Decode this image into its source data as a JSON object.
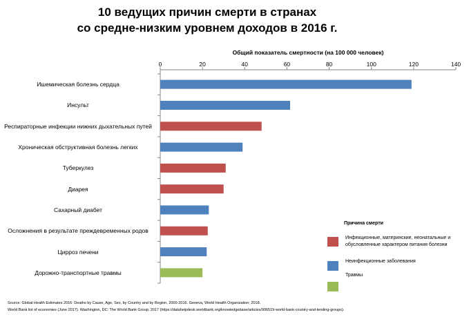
{
  "title_line1": "10 ведущих причин смерти в странах",
  "title_line2": "со средне-низким уровнем доходов в 2016 г.",
  "chart_data": {
    "type": "bar",
    "orientation": "horizontal",
    "xlabel": "Общий показатель смертности (на 100 000 человек)",
    "xlim": [
      0,
      140
    ],
    "ticks": [
      "0",
      "20",
      "40",
      "60",
      "80",
      "100",
      "120",
      "140"
    ],
    "tick_values": [
      0,
      20,
      40,
      60,
      80,
      100,
      120,
      140
    ],
    "categories": [
      "Ишемическая болезнь сердца",
      "Инсульт",
      "Респираторные инфекции нижних дыхательных путей",
      "Хроническая обструктивная болезнь легких",
      "Туберкулез",
      "Диарея",
      "Сахарный диабет",
      "Осложнения в результате преждевременных родов",
      "Цирроз печени",
      "Дорожно-транспортные травмы"
    ],
    "values": [
      119,
      61.5,
      48,
      39,
      31,
      30,
      23,
      22.5,
      22,
      20
    ],
    "groups": [
      "noninfectious",
      "noninfectious",
      "infectious",
      "noninfectious",
      "infectious",
      "infectious",
      "noninfectious",
      "infectious",
      "noninfectious",
      "injury"
    ],
    "grid": false,
    "legend_position": "bottom-right"
  },
  "colors": {
    "infectious": "#c0504d",
    "noninfectious": "#4f81bd",
    "injury": "#9bbb59",
    "axis": "#868686"
  },
  "legend": {
    "title": "Причина смерти",
    "items": [
      {
        "label": "Инфекционные, материнские, неонатальные и обусловленные характером питания болезни",
        "color": "#c0504d"
      },
      {
        "label": "Неинфекционные заболевания",
        "color": "#4f81bd"
      },
      {
        "label": "Травмы",
        "color": "#9bbb59"
      }
    ]
  },
  "source": {
    "line1": "Source: Global Health Estimates 2016: Deaths by Cause, Age, Sex, by Country and by Region, 2000-2016. Geneva, World Health Organization; 2018.",
    "line2": "World Bank list of economies (June 2017). Washington, DC: The World Bank Group; 2017 (https://datahelpdesk.worldbank.org/knowledgebase/articles/906519-world-bank-country-and-lending-groups)."
  }
}
